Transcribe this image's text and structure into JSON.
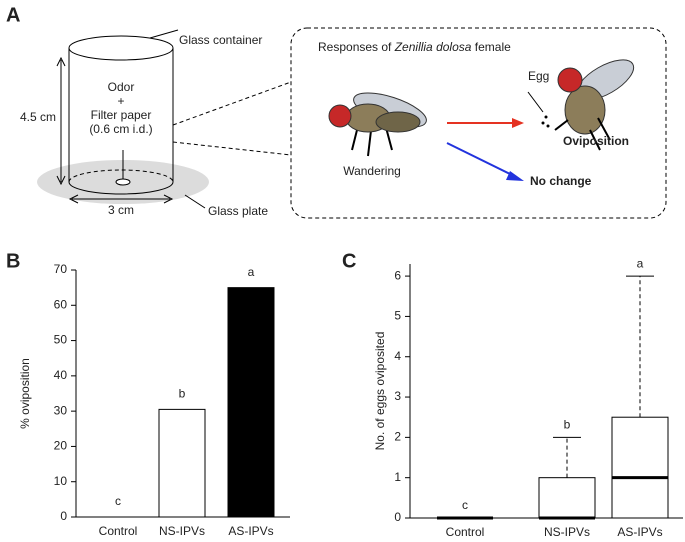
{
  "panel_labels": [
    "A",
    "B",
    "C"
  ],
  "diagram": {
    "glass_container": "Glass container",
    "odor": "Odor",
    "plus": "+",
    "filter_paper": "Filter paper",
    "filter_size": "(0.6 cm i.d.)",
    "height": "4.5 cm",
    "width": "3 cm",
    "glass_plate": "Glass plate",
    "responses_prefix": "Responses of ",
    "species": "Zenillia dolosa",
    "responses_suffix": " female",
    "egg": "Egg",
    "wandering": "Wandering",
    "oviposition": "Oviposition",
    "no_change": "No change"
  },
  "chart_data": [
    {
      "type": "bar",
      "ylabel": "% oviposition",
      "categories": [
        "Control",
        "NS-IPVs",
        "AS-IPVs"
      ],
      "values": [
        0,
        30.5,
        65
      ],
      "colors": [
        "#ffffff",
        "#ffffff",
        "#000000"
      ],
      "annotations": [
        "c",
        "b",
        "a"
      ],
      "ylim": [
        0,
        70
      ],
      "yticks": [
        0,
        10,
        20,
        30,
        40,
        50,
        60,
        70
      ]
    },
    {
      "type": "box",
      "ylabel": "No. of eggs oviposited",
      "categories": [
        "Control",
        "NS-IPVs",
        "AS-IPVs"
      ],
      "boxes": [
        {
          "min": 0,
          "q1": 0,
          "median": 0,
          "q3": 0,
          "max": 0
        },
        {
          "min": 0,
          "q1": 0,
          "median": 0,
          "q3": 1,
          "max": 2
        },
        {
          "min": 0,
          "q1": 0,
          "median": 1,
          "q3": 2.5,
          "max": 6
        }
      ],
      "annotations": [
        "c",
        "b",
        "a"
      ],
      "ylim": [
        0,
        6.3
      ],
      "yticks": [
        0,
        1,
        2,
        3,
        4,
        5,
        6
      ]
    }
  ]
}
